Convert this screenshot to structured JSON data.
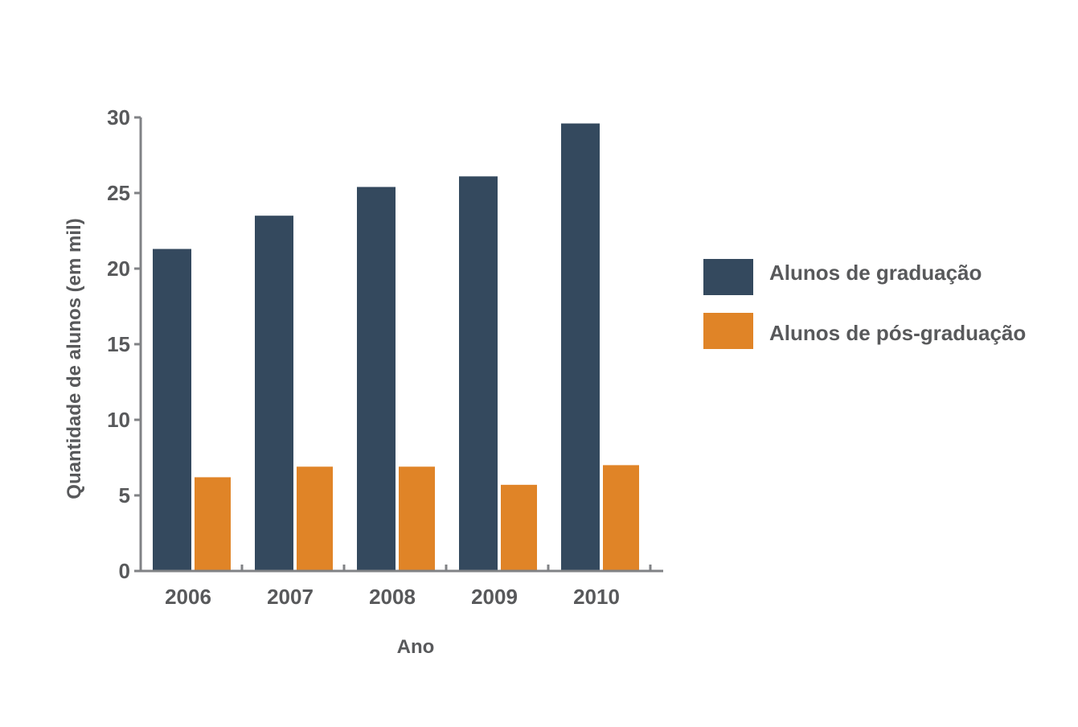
{
  "chart_data": {
    "type": "bar",
    "categories": [
      "2006",
      "2007",
      "2008",
      "2009",
      "2010"
    ],
    "series": [
      {
        "name": "Alunos de graduação",
        "values": [
          21.3,
          23.5,
          25.4,
          26.1,
          29.6
        ],
        "color": "#34495e"
      },
      {
        "name": "Alunos de pós-graduação",
        "values": [
          6.2,
          6.9,
          6.9,
          5.7,
          7.0
        ],
        "color": "#e08427"
      }
    ],
    "xlabel": "Ano",
    "ylabel": "Quantidade de alunos (em mil)",
    "ylim": [
      0,
      30
    ],
    "yticks": [
      0,
      5,
      10,
      15,
      20,
      25,
      30
    ],
    "grid": false,
    "legend_position": "right",
    "axis_color": "#808285",
    "text_color": "#58595b"
  }
}
